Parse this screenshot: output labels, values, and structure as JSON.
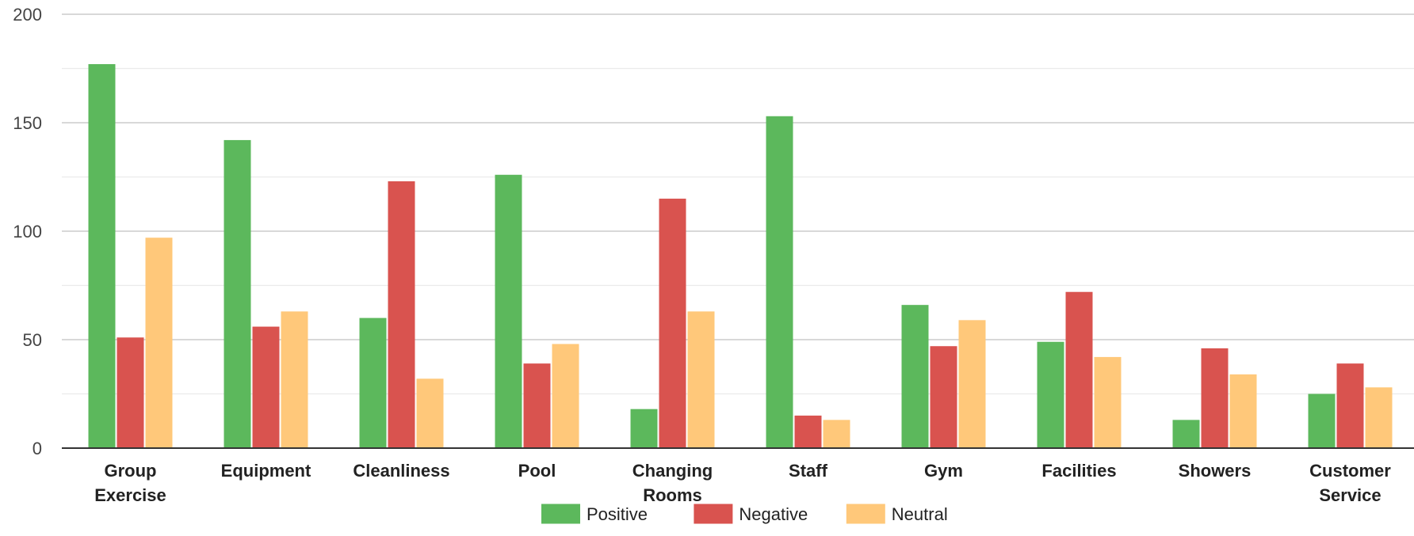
{
  "chart_data": {
    "type": "bar",
    "title": "",
    "xlabel": "",
    "ylabel": "",
    "ylim": [
      0,
      200
    ],
    "yticks": [
      0,
      50,
      100,
      150,
      200
    ],
    "grid": true,
    "legend": "bottom",
    "categories": [
      [
        "Group",
        "Exercise"
      ],
      [
        "Equipment"
      ],
      [
        "Cleanliness"
      ],
      [
        "Pool"
      ],
      [
        "Changing",
        "Rooms"
      ],
      [
        "Staff"
      ],
      [
        "Gym"
      ],
      [
        "Facilities"
      ],
      [
        "Showers"
      ],
      [
        "Customer",
        "Service"
      ]
    ],
    "series": [
      {
        "name": "Positive",
        "color": "#5cb85c",
        "values": [
          177,
          142,
          60,
          126,
          18,
          153,
          66,
          49,
          13,
          25
        ]
      },
      {
        "name": "Negative",
        "color": "#d9534f",
        "values": [
          51,
          56,
          123,
          39,
          115,
          15,
          47,
          72,
          46,
          39
        ]
      },
      {
        "name": "Neutral",
        "color": "#ffc87a",
        "values": [
          97,
          63,
          32,
          48,
          63,
          13,
          59,
          42,
          34,
          28
        ]
      }
    ]
  }
}
